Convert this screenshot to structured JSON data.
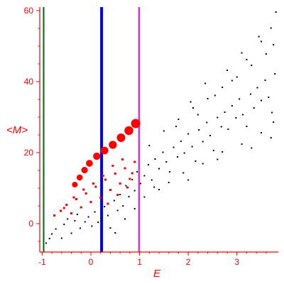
{
  "chart_data": {
    "type": "scatter",
    "title": "",
    "xlabel": "E",
    "ylabel": "<M>",
    "xlim": [
      -1.05,
      3.85
    ],
    "ylim": [
      -8,
      61
    ],
    "x_ticks": [
      -1,
      0,
      1,
      2,
      3
    ],
    "y_ticks": [
      0,
      20,
      40,
      60
    ],
    "x_tick_labels": [
      "-1",
      "0",
      "1",
      "2",
      "3"
    ],
    "y_tick_labels": [
      "0",
      "20",
      "40",
      "60"
    ],
    "grid": false,
    "legend": "none",
    "colors": {
      "axis": "#ff0000",
      "black_points": "#000000",
      "red_points": "#ff0000",
      "line_green": "#006400",
      "line_blue": "#0000ff",
      "line_magenta": "#ff00ff"
    },
    "vertical_lines": [
      {
        "x": -0.97,
        "color": "#006400",
        "weight": "thin"
      },
      {
        "x": 0.22,
        "color": "#0000ff",
        "weight": "thick"
      },
      {
        "x": 0.99,
        "color": "#ff00ff",
        "weight": "medium"
      }
    ],
    "series": [
      {
        "style": "black-dots",
        "points": [
          [
            -0.92,
            -5.5
          ],
          [
            -0.85,
            -4.2
          ],
          [
            -0.8,
            -2.9
          ],
          [
            -0.72,
            -1.5
          ],
          [
            -0.6,
            -4.1
          ],
          [
            -0.55,
            -0.2
          ],
          [
            -0.48,
            1.3
          ],
          [
            -0.4,
            -2.7
          ],
          [
            -0.33,
            0.8
          ],
          [
            -0.28,
            2.6
          ],
          [
            -0.22,
            -1.3
          ],
          [
            -0.12,
            0.5
          ],
          [
            -0.05,
            1.9
          ],
          [
            0.02,
            -0.7
          ],
          [
            0.08,
            3.3
          ],
          [
            0.15,
            0.4
          ],
          [
            0.22,
            1.6
          ],
          [
            0.28,
            4.8
          ],
          [
            0.35,
            2.3
          ],
          [
            0.4,
            -1.2
          ],
          [
            0.48,
            6.5
          ],
          [
            0.55,
            3.7
          ],
          [
            0.6,
            8.2
          ],
          [
            0.66,
            5.0
          ],
          [
            0.72,
            10.7
          ],
          [
            0.78,
            7.6
          ],
          [
            0.85,
            12.4
          ],
          [
            0.9,
            9.3
          ],
          [
            0.95,
            14.6
          ],
          [
            1.02,
            11.3
          ],
          [
            1.1,
            13.5
          ],
          [
            1.18,
            16.6
          ],
          [
            1.25,
            12.3
          ],
          [
            1.32,
            18.2
          ],
          [
            1.4,
            15.5
          ],
          [
            1.48,
            20.1
          ],
          [
            1.55,
            17.4
          ],
          [
            1.62,
            14.6
          ],
          [
            1.7,
            21.5
          ],
          [
            1.78,
            18.8
          ],
          [
            1.85,
            23.2
          ],
          [
            1.92,
            19.9
          ],
          [
            2.0,
            25.3
          ],
          [
            2.08,
            21.7
          ],
          [
            2.15,
            17.6
          ],
          [
            2.22,
            26.4
          ],
          [
            2.3,
            23.1
          ],
          [
            2.38,
            28.5
          ],
          [
            2.45,
            24.8
          ],
          [
            2.52,
            20.6
          ],
          [
            2.6,
            29.9
          ],
          [
            2.68,
            27.3
          ],
          [
            2.75,
            31.4
          ],
          [
            2.82,
            26.6
          ],
          [
            2.9,
            33.2
          ],
          [
            2.98,
            29.8
          ],
          [
            3.05,
            35.1
          ],
          [
            3.12,
            30.7
          ],
          [
            3.2,
            27.4
          ],
          [
            3.28,
            36.5
          ],
          [
            3.35,
            32.6
          ],
          [
            3.42,
            38.3
          ],
          [
            3.5,
            34.7
          ],
          [
            3.58,
            40.4
          ],
          [
            3.65,
            35.6
          ],
          [
            3.72,
            31.3
          ],
          [
            3.78,
            42.2
          ],
          [
            1.2,
            22.0
          ],
          [
            1.5,
            26.1
          ],
          [
            1.8,
            29.4
          ],
          [
            2.1,
            32.6
          ],
          [
            2.4,
            35.2
          ],
          [
            2.7,
            38.4
          ],
          [
            3.0,
            41.3
          ],
          [
            3.3,
            44.6
          ],
          [
            3.6,
            47.8
          ],
          [
            3.75,
            50.4
          ],
          [
            2.2,
            30.7
          ],
          [
            2.55,
            36.1
          ],
          [
            2.9,
            40.3
          ],
          [
            3.2,
            46.2
          ],
          [
            3.5,
            51.3
          ],
          [
            3.7,
            55.1
          ],
          [
            3.8,
            59.6
          ],
          [
            3.45,
            52.7
          ],
          [
            3.1,
            48.1
          ],
          [
            2.8,
            43.2
          ],
          [
            0.5,
            -2.6
          ],
          [
            0.7,
            1.3
          ],
          [
            0.9,
            4.2
          ],
          [
            1.1,
            7.5
          ],
          [
            1.3,
            10.3
          ],
          [
            1.6,
            11.6
          ],
          [
            1.9,
            14.3
          ],
          [
            2.3,
            16.9
          ],
          [
            2.7,
            20.2
          ],
          [
            3.1,
            22.4
          ],
          [
            3.5,
            25.6
          ],
          [
            3.75,
            28.6
          ],
          [
            1.4,
            9.6
          ],
          [
            2.0,
            12.3
          ],
          [
            2.6,
            18.1
          ],
          [
            3.3,
            21.3
          ],
          [
            3.7,
            24.2
          ],
          [
            1.75,
            27.4
          ],
          [
            2.05,
            34.3
          ],
          [
            2.35,
            39.5
          ]
        ]
      },
      {
        "style": "red-small",
        "points": [
          [
            -0.75,
            2.3
          ],
          [
            -0.62,
            3.6
          ],
          [
            -0.5,
            5.3
          ],
          [
            -0.4,
            2.9
          ],
          [
            -0.3,
            6.9
          ],
          [
            -0.2,
            4.6
          ],
          [
            -0.1,
            8.5
          ],
          [
            0.0,
            6.1
          ],
          [
            0.1,
            10.4
          ],
          [
            0.2,
            7.3
          ],
          [
            0.3,
            12.4
          ],
          [
            0.4,
            9.5
          ],
          [
            0.5,
            14.1
          ],
          [
            0.6,
            11.3
          ],
          [
            0.7,
            15.6
          ],
          [
            0.8,
            12.6
          ],
          [
            0.9,
            17.4
          ],
          [
            0.35,
            5.6
          ],
          [
            0.55,
            8.1
          ],
          [
            0.75,
            10.2
          ],
          [
            0.85,
            14.2
          ],
          [
            0.45,
            16.3
          ],
          [
            0.65,
            18.1
          ],
          [
            0.25,
            13.5
          ],
          [
            0.05,
            11.3
          ],
          [
            -0.15,
            9.6
          ],
          [
            -0.35,
            7.4
          ],
          [
            -0.55,
            4.4
          ]
        ]
      },
      {
        "style": "red-large",
        "points": [
          [
            -0.33,
            11.0
          ],
          [
            -0.23,
            13.0
          ],
          [
            -0.13,
            15.1
          ],
          [
            -0.03,
            17.0
          ],
          [
            0.12,
            19.0
          ],
          [
            0.28,
            20.6
          ],
          [
            0.45,
            22.2
          ],
          [
            0.62,
            24.2
          ],
          [
            0.78,
            26.2
          ],
          [
            0.92,
            28.2
          ]
        ]
      }
    ]
  }
}
